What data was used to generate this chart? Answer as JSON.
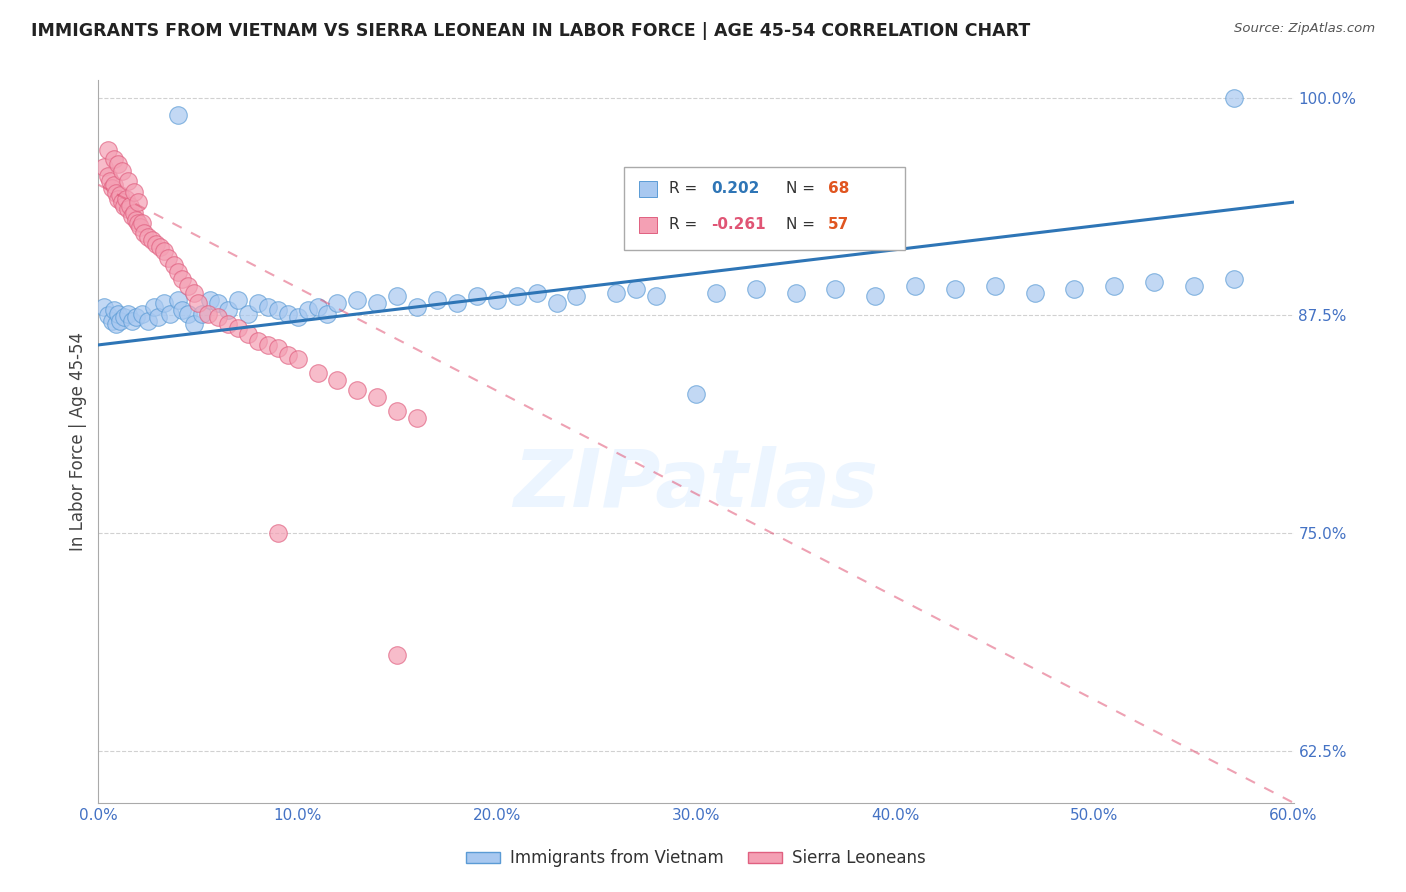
{
  "title": "IMMIGRANTS FROM VIETNAM VS SIERRA LEONEAN IN LABOR FORCE | AGE 45-54 CORRELATION CHART",
  "source": "Source: ZipAtlas.com",
  "ylabel": "In Labor Force | Age 45-54",
  "xlim": [
    0.0,
    0.6
  ],
  "ylim": [
    0.595,
    1.01
  ],
  "yticks": [
    0.625,
    0.75,
    0.875,
    1.0
  ],
  "ytick_labels": [
    "62.5%",
    "75.0%",
    "87.5%",
    "100.0%"
  ],
  "xticks": [
    0.0,
    0.1,
    0.2,
    0.3,
    0.4,
    0.5,
    0.6
  ],
  "xtick_labels": [
    "0.0%",
    "10.0%",
    "20.0%",
    "30.0%",
    "40.0%",
    "50.0%",
    "60.0%"
  ],
  "legend_label_blue": "Immigrants from Vietnam",
  "legend_label_pink": "Sierra Leoneans",
  "blue_fill": "#a8c8f0",
  "blue_edge": "#5b9bd5",
  "blue_line": "#2e75b6",
  "pink_fill": "#f4a0b4",
  "pink_edge": "#e06080",
  "pink_line": "#e05575",
  "axis_color": "#4472c4",
  "watermark": "ZIPatlas",
  "blue_trend_x0": 0.0,
  "blue_trend_y0": 0.858,
  "blue_trend_x1": 0.6,
  "blue_trend_y1": 0.94,
  "pink_trend_x0": 0.0,
  "pink_trend_y0": 0.95,
  "pink_trend_x1": 0.6,
  "pink_trend_y1": 0.595,
  "viet_x": [
    0.003,
    0.005,
    0.007,
    0.008,
    0.009,
    0.01,
    0.011,
    0.013,
    0.015,
    0.017,
    0.019,
    0.022,
    0.025,
    0.028,
    0.03,
    0.033,
    0.036,
    0.04,
    0.042,
    0.045,
    0.048,
    0.052,
    0.056,
    0.06,
    0.065,
    0.07,
    0.075,
    0.08,
    0.085,
    0.09,
    0.095,
    0.1,
    0.105,
    0.11,
    0.115,
    0.12,
    0.13,
    0.14,
    0.15,
    0.16,
    0.17,
    0.18,
    0.19,
    0.2,
    0.21,
    0.22,
    0.23,
    0.24,
    0.26,
    0.27,
    0.28,
    0.3,
    0.31,
    0.33,
    0.35,
    0.37,
    0.39,
    0.41,
    0.43,
    0.45,
    0.47,
    0.49,
    0.51,
    0.53,
    0.55,
    0.57,
    0.04,
    0.57
  ],
  "viet_y": [
    0.88,
    0.875,
    0.872,
    0.878,
    0.87,
    0.876,
    0.872,
    0.874,
    0.876,
    0.872,
    0.874,
    0.876,
    0.872,
    0.88,
    0.874,
    0.882,
    0.876,
    0.884,
    0.878,
    0.876,
    0.87,
    0.876,
    0.884,
    0.882,
    0.878,
    0.884,
    0.876,
    0.882,
    0.88,
    0.878,
    0.876,
    0.874,
    0.878,
    0.88,
    0.876,
    0.882,
    0.884,
    0.882,
    0.886,
    0.88,
    0.884,
    0.882,
    0.886,
    0.884,
    0.886,
    0.888,
    0.882,
    0.886,
    0.888,
    0.89,
    0.886,
    0.83,
    0.888,
    0.89,
    0.888,
    0.89,
    0.886,
    0.892,
    0.89,
    0.892,
    0.888,
    0.89,
    0.892,
    0.894,
    0.892,
    0.896,
    0.99,
    1.0
  ],
  "sierra_x": [
    0.003,
    0.005,
    0.006,
    0.007,
    0.008,
    0.009,
    0.01,
    0.011,
    0.012,
    0.013,
    0.014,
    0.015,
    0.016,
    0.017,
    0.018,
    0.019,
    0.02,
    0.021,
    0.022,
    0.023,
    0.025,
    0.027,
    0.029,
    0.031,
    0.033,
    0.035,
    0.038,
    0.04,
    0.042,
    0.045,
    0.048,
    0.05,
    0.055,
    0.06,
    0.065,
    0.07,
    0.075,
    0.08,
    0.085,
    0.09,
    0.095,
    0.1,
    0.11,
    0.12,
    0.13,
    0.14,
    0.15,
    0.16,
    0.005,
    0.008,
    0.01,
    0.012,
    0.015,
    0.018,
    0.02,
    0.09,
    0.15
  ],
  "sierra_y": [
    0.96,
    0.955,
    0.952,
    0.948,
    0.95,
    0.945,
    0.942,
    0.944,
    0.94,
    0.938,
    0.942,
    0.936,
    0.938,
    0.932,
    0.934,
    0.93,
    0.928,
    0.926,
    0.928,
    0.922,
    0.92,
    0.918,
    0.916,
    0.914,
    0.912,
    0.908,
    0.904,
    0.9,
    0.896,
    0.892,
    0.888,
    0.882,
    0.876,
    0.874,
    0.87,
    0.868,
    0.864,
    0.86,
    0.858,
    0.856,
    0.852,
    0.85,
    0.842,
    0.838,
    0.832,
    0.828,
    0.82,
    0.816,
    0.97,
    0.965,
    0.962,
    0.958,
    0.952,
    0.946,
    0.94,
    0.75,
    0.68
  ]
}
